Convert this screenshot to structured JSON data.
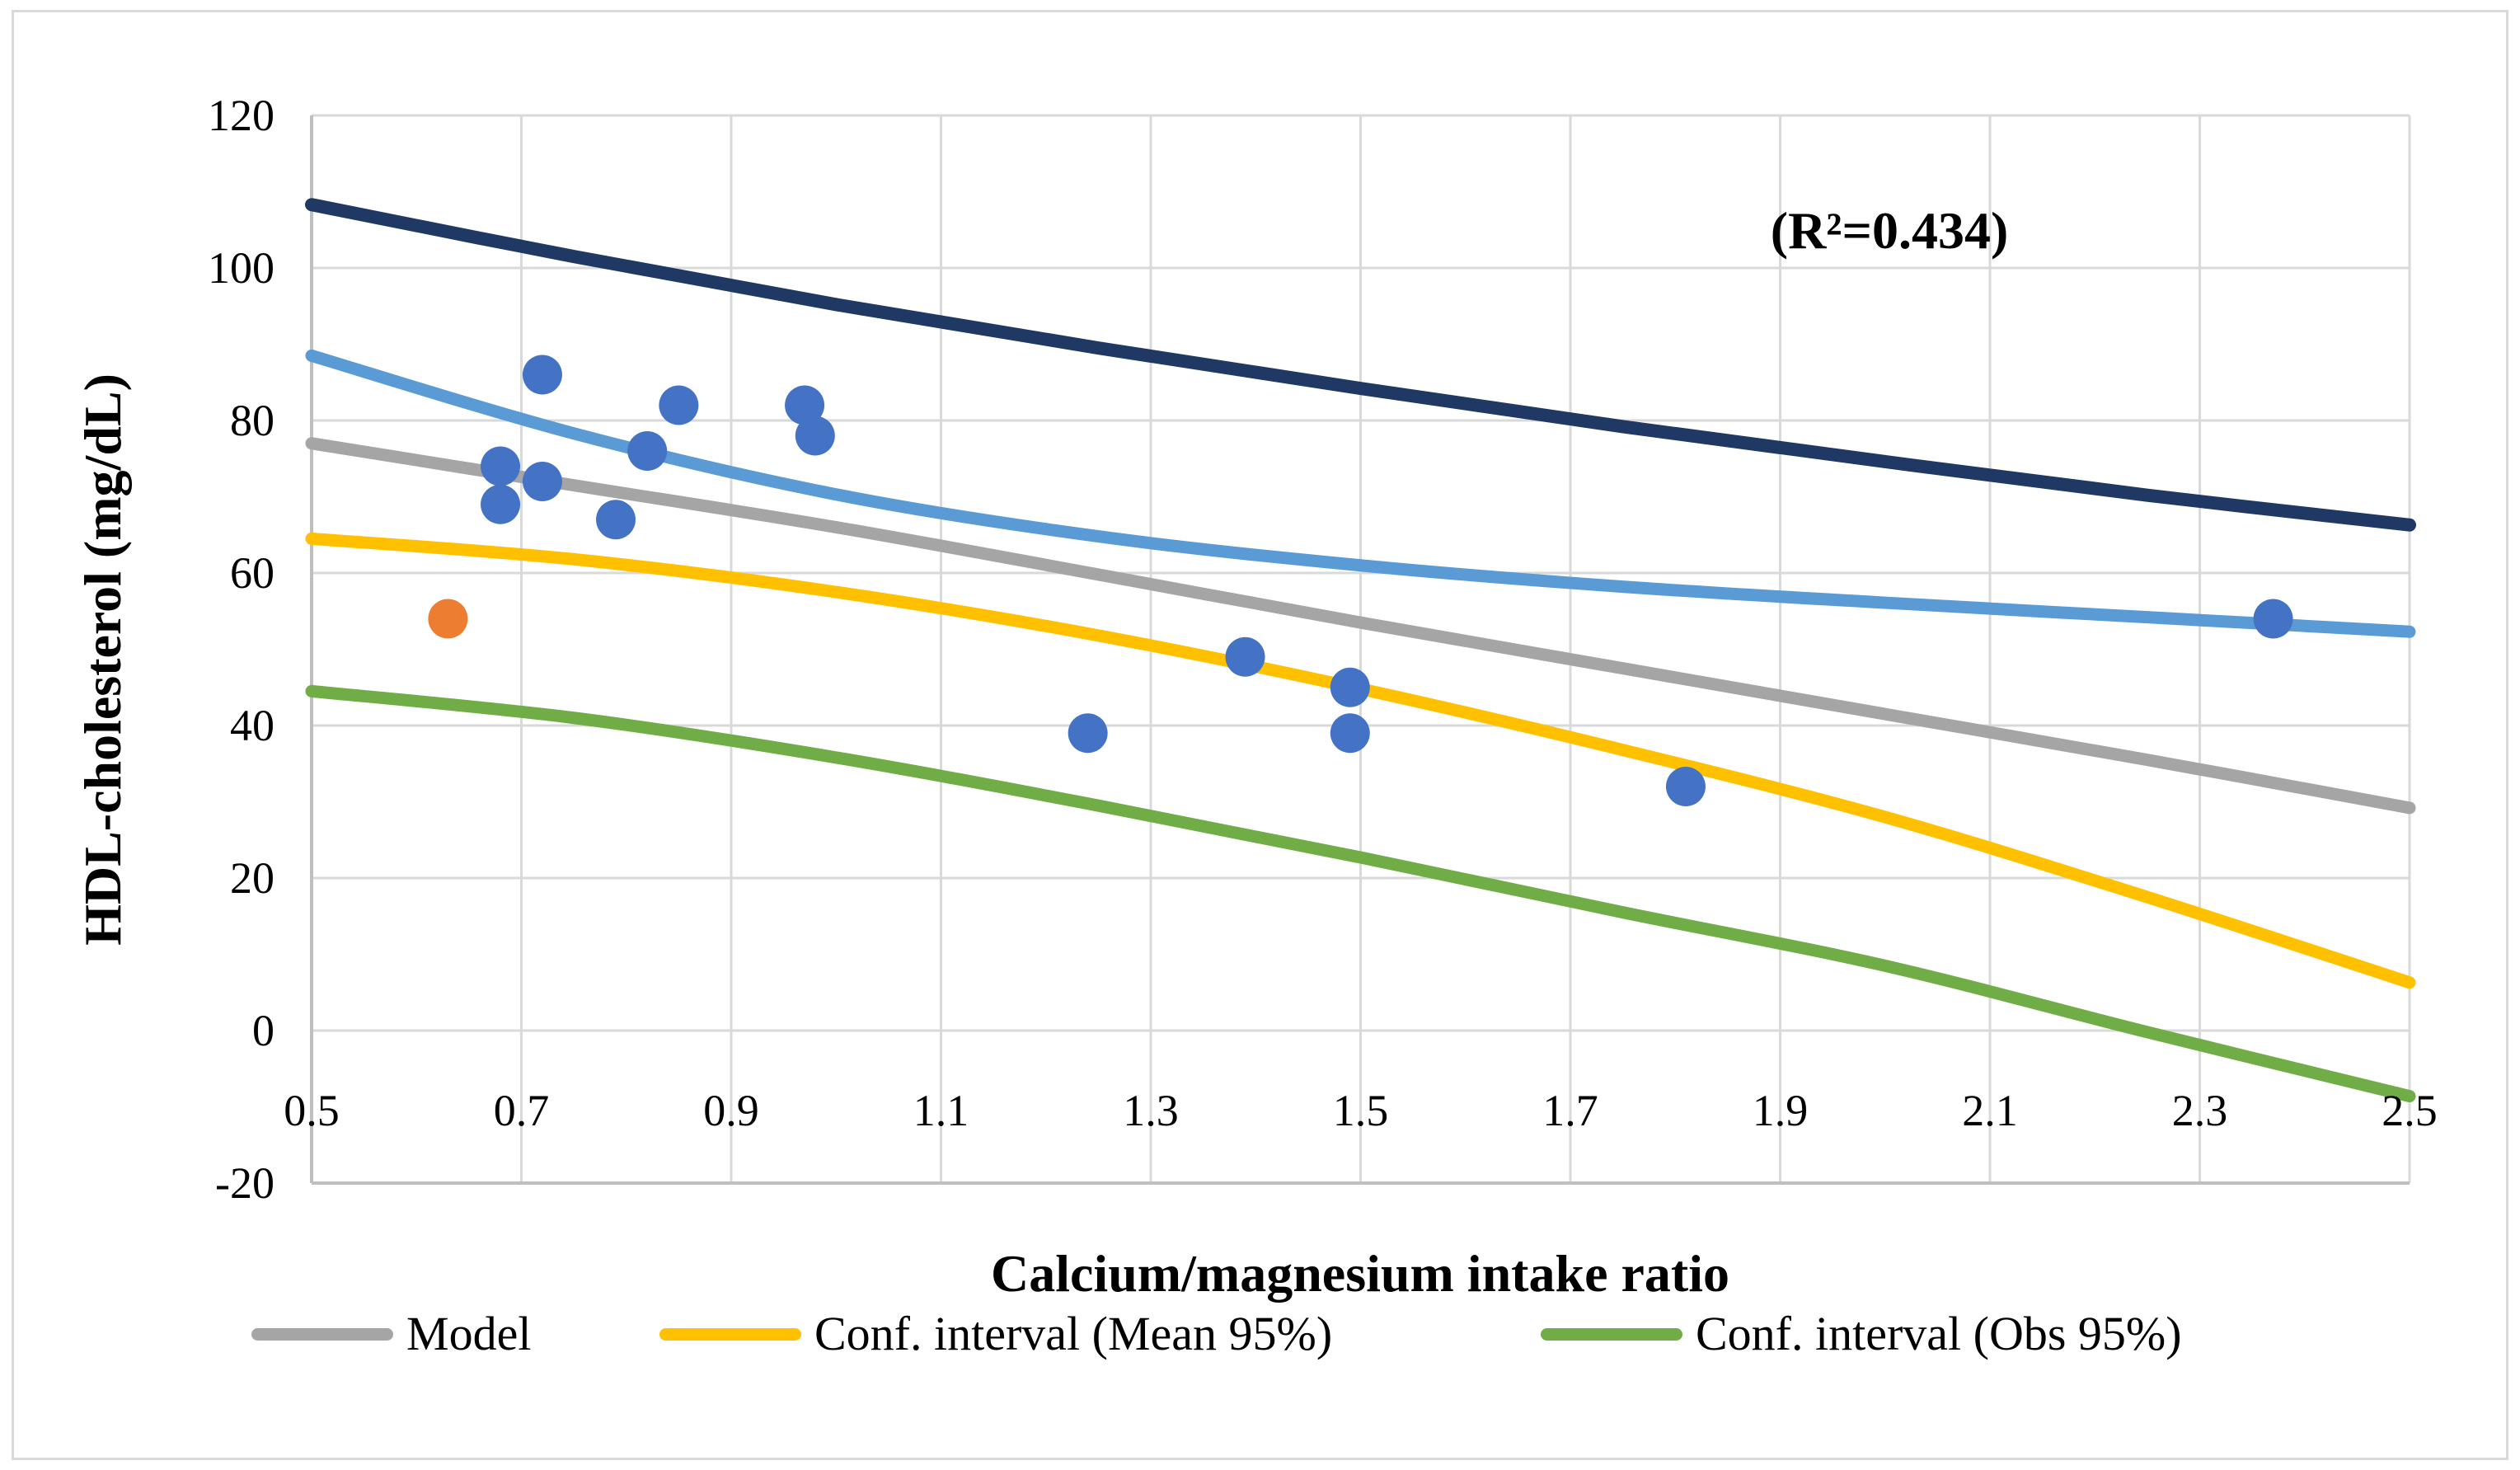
{
  "figure": {
    "annotation": "(R²=0.434)"
  },
  "colors": {
    "grid": "#d9d9d9",
    "axis": "#bfbfbf",
    "scatter_blue": "#4472C4",
    "scatter_orange": "#ED7D31",
    "dark_blue_line": "#203864",
    "light_blue_line": "#5B9BD5",
    "model_gray": "#A5A5A5",
    "mean_ci_yellow": "#FFC000",
    "obs_ci_green": "#70AD47"
  },
  "chart_data": {
    "type": "scatter",
    "title": "",
    "xlabel": "Calcium/magnesium intake ratio",
    "ylabel": "HDL-cholesterol (mg/dL)",
    "annotation": "(R²=0.434)",
    "xlim": [
      0.5,
      2.5
    ],
    "ylim": [
      -20,
      120
    ],
    "grid": true,
    "legend_position": "bottom",
    "x_ticks": [
      "0.5",
      "0.7",
      "0.9",
      "1.1",
      "1.3",
      "1.5",
      "1.7",
      "1.9",
      "2.1",
      "2.3",
      "2.5"
    ],
    "x_tick_values": [
      0.5,
      0.7,
      0.9,
      1.1,
      1.3,
      1.5,
      1.7,
      1.9,
      2.1,
      2.3,
      2.5
    ],
    "y_ticks": [
      "120",
      "100",
      "80",
      "60",
      "40",
      "20",
      "0",
      "-20"
    ],
    "y_tick_values": [
      120,
      100,
      80,
      60,
      40,
      20,
      0,
      -20
    ],
    "scatter_series": [
      {
        "name": "observations-blue",
        "color": "#4472C4",
        "points": [
          [
            0.68,
            74
          ],
          [
            0.68,
            69
          ],
          [
            0.72,
            86
          ],
          [
            0.72,
            72
          ],
          [
            0.79,
            67
          ],
          [
            0.82,
            76
          ],
          [
            0.85,
            82
          ],
          [
            0.97,
            82
          ],
          [
            0.98,
            78
          ],
          [
            1.24,
            39
          ],
          [
            1.39,
            49
          ],
          [
            1.49,
            45
          ],
          [
            1.49,
            39
          ],
          [
            1.81,
            32
          ],
          [
            2.37,
            54
          ]
        ]
      },
      {
        "name": "observation-orange",
        "color": "#ED7D31",
        "points": [
          [
            0.63,
            54
          ]
        ]
      }
    ],
    "line_series": [
      {
        "name": "dark-blue-upper-curve",
        "color": "#203864",
        "width": 16,
        "x": [
          0.5,
          0.75,
          1.0,
          1.25,
          1.5,
          1.75,
          2.0,
          2.25,
          2.5
        ],
        "y": [
          108.3,
          101.5,
          95.2,
          89.5,
          84.2,
          79.2,
          74.6,
          70.2,
          66.3
        ]
      },
      {
        "name": "light-blue-upper-curve",
        "color": "#5B9BD5",
        "width": 15,
        "x": [
          0.5,
          0.75,
          1.0,
          1.25,
          1.5,
          1.75,
          2.0,
          2.25,
          2.5
        ],
        "y": [
          88.5,
          78.3,
          70.3,
          64.8,
          61.0,
          58.2,
          56.1,
          54.2,
          52.3
        ]
      },
      {
        "name": "model-curve",
        "color": "#A5A5A5",
        "width": 15,
        "x": [
          0.5,
          0.75,
          1.0,
          1.25,
          1.5,
          1.75,
          2.0,
          2.25,
          2.5
        ],
        "y": [
          77,
          71.5,
          66,
          59.8,
          53.5,
          47.5,
          41.5,
          35.5,
          29.2
        ]
      },
      {
        "name": "mean-ci-lower-curve",
        "color": "#FFC000",
        "width": 15,
        "x": [
          0.5,
          0.75,
          1.0,
          1.25,
          1.5,
          1.75,
          2.0,
          2.25,
          2.5
        ],
        "y": [
          64.5,
          61.8,
          57.5,
          51.8,
          44.8,
          36.8,
          28,
          17.5,
          6.3
        ]
      },
      {
        "name": "obs-ci-lower-curve",
        "color": "#70AD47",
        "width": 15,
        "x": [
          0.5,
          0.75,
          1.0,
          1.25,
          1.5,
          1.75,
          2.0,
          2.25,
          2.5
        ],
        "y": [
          44.5,
          41,
          35.8,
          29.5,
          22.7,
          15.5,
          8.5,
          -0.2,
          -8.6
        ]
      }
    ],
    "legend": [
      {
        "label": "Model",
        "color": "#A5A5A5"
      },
      {
        "label": "Conf. interval (Mean 95%)",
        "color": "#FFC000"
      },
      {
        "label": "Conf. interval (Obs 95%)",
        "color": "#70AD47"
      }
    ]
  }
}
